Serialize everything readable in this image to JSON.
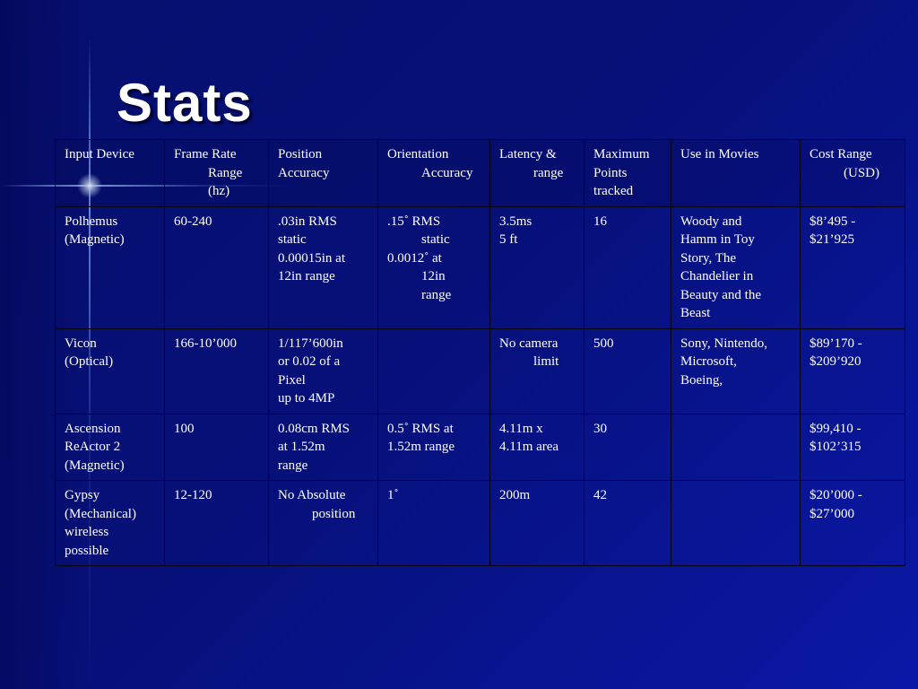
{
  "slide": {
    "title": "Stats"
  },
  "table": {
    "headers": [
      [
        "Input Device"
      ],
      [
        "Frame Rate",
        "Range",
        "(hz)"
      ],
      [
        "Position",
        "Accuracy"
      ],
      [
        "Orientation",
        "Accuracy"
      ],
      [
        "Latency &",
        "range"
      ],
      [
        "Maximum",
        "Points",
        "tracked"
      ],
      [
        "Use in Movies"
      ],
      [
        "Cost Range",
        "(USD)"
      ]
    ],
    "rows": [
      {
        "device": [
          "Polhemus",
          "(Magnetic)"
        ],
        "frame_rate": [
          "60-240"
        ],
        "position": [
          ".03in RMS",
          "static",
          "0.00015in at",
          "12in range"
        ],
        "orientation": [
          ".15˚   RMS",
          "static",
          "0.0012˚   at",
          "12in",
          "range"
        ],
        "latency": [
          "3.5ms",
          "5 ft"
        ],
        "max_points": [
          "16"
        ],
        "movies": [
          "Woody and",
          "Hamm in Toy",
          "Story, The",
          "Chandelier in",
          "Beauty and the",
          "Beast"
        ],
        "cost": [
          "$8’495 -",
          "$21’925"
        ]
      },
      {
        "device": [
          "Vicon",
          "(Optical)"
        ],
        "frame_rate": [
          "166-10’000"
        ],
        "position": [
          "1/117’600in",
          "or 0.02 of a",
          "Pixel",
          "up to 4MP"
        ],
        "orientation": [],
        "latency": [
          "No camera",
          "limit"
        ],
        "max_points": [
          "500"
        ],
        "movies": [
          "Sony, Nintendo,",
          "Microsoft,",
          "Boeing,"
        ],
        "cost": [
          "$89’170 -",
          "$209’920"
        ]
      },
      {
        "device": [
          "Ascension",
          "ReActor 2",
          "(Magnetic)"
        ],
        "frame_rate": [
          "100"
        ],
        "position": [
          "0.08cm RMS",
          "at 1.52m",
          "range"
        ],
        "orientation": [
          "0.5˚   RMS at",
          "1.52m range"
        ],
        "latency": [
          "4.11m x",
          "4.11m area"
        ],
        "max_points": [
          "30"
        ],
        "movies": [],
        "cost": [
          "$99,410 -",
          "$102’315"
        ]
      },
      {
        "device": [
          "Gypsy",
          "(Mechanical)",
          "wireless",
          "possible"
        ],
        "frame_rate": [
          "12-120"
        ],
        "position": [
          "No Absolute",
          "position"
        ],
        "orientation": [
          "1˚"
        ],
        "latency": [
          "200m"
        ],
        "max_points": [
          "42"
        ],
        "movies": [],
        "cost": [
          "$20’000 -",
          "$27’000"
        ]
      }
    ]
  }
}
